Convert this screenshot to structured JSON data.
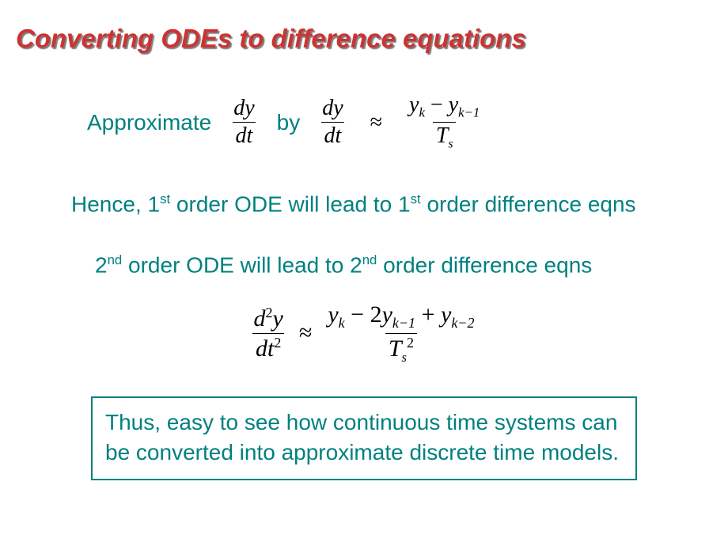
{
  "title": "Converting ODEs to difference equations",
  "colors": {
    "title_color": "#cc3333",
    "teal": "#008080",
    "black": "#000000",
    "box_border": "#008080",
    "background": "#ffffff"
  },
  "typography": {
    "title_fontsize": 33,
    "body_fontsize": 28,
    "math_font": "Times New Roman"
  },
  "line1": {
    "approx_word": "Approximate",
    "by_word": "by",
    "lhs_num": "dy",
    "lhs_den": "dt",
    "rhs_lhs_num": "dy",
    "rhs_lhs_den": "dt",
    "approx_sym": "≈",
    "rhs_num_a": "y",
    "rhs_num_a_sub": "k",
    "rhs_num_minus": " − ",
    "rhs_num_b": "y",
    "rhs_num_b_sub": "k−1",
    "rhs_den_T": "T",
    "rhs_den_T_sub": "s"
  },
  "line2": {
    "pre": "Hence, 1",
    "ord1": "st",
    "mid": " order ODE will lead to 1",
    "ord2": "st",
    "post": " order difference eqns"
  },
  "line3": {
    "pre": "2",
    "ord1": "nd",
    "mid": " order ODE will lead to 2",
    "ord2": "nd",
    "post": " order difference eqns"
  },
  "eq2": {
    "lhs_num_d": "d",
    "lhs_num_exp": "2",
    "lhs_num_y": "y",
    "lhs_den_dt": "dt",
    "lhs_den_exp": "2",
    "approx_sym": "≈",
    "num_y1": "y",
    "num_y1_sub": "k",
    "num_minus1": " − 2",
    "num_y2": "y",
    "num_y2_sub": "k−1",
    "num_plus": " + ",
    "num_y3": "y",
    "num_y3_sub": "k−2",
    "den_T": "T",
    "den_T_sub": "s",
    "den_T_exp": "2"
  },
  "boxed": {
    "line_a": "Thus, easy to see how continuous time systems can",
    "line_b": "be converted into approximate discrete time models."
  }
}
